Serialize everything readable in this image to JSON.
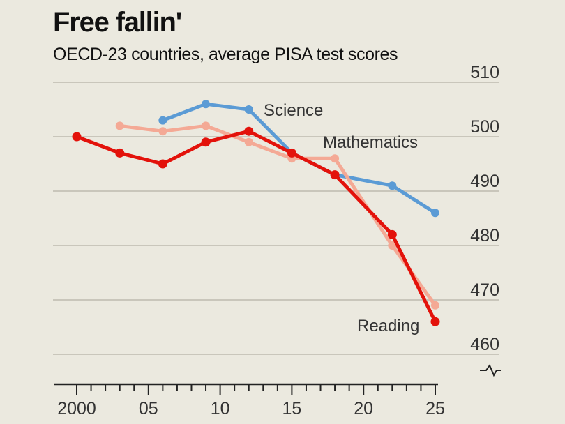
{
  "header": {
    "title": "Free fallin'",
    "subtitle": "OECD-23 countries, average PISA test scores"
  },
  "colors": {
    "science": "#5b9bd5",
    "mathematics": "#f4a995",
    "reading": "#e3120b",
    "grid": "#c9c6bb",
    "axis": "#222222"
  },
  "chart_data": {
    "type": "line",
    "title": "Free fallin'",
    "subtitle": "OECD-23 countries, average PISA test scores",
    "xlim": [
      2000,
      2025
    ],
    "ylim": [
      458,
      510
    ],
    "y_axis_side": "right",
    "y_ticks": [
      510,
      500,
      490,
      480,
      470,
      460
    ],
    "y_tick_labels": [
      "510",
      "500",
      "490",
      "480",
      "470",
      "460"
    ],
    "x_ticks": [
      2000,
      2005,
      2010,
      2015,
      2020,
      2025
    ],
    "x_tick_labels": [
      "2000",
      "05",
      "10",
      "15",
      "20",
      "25"
    ],
    "grid": true,
    "axis_break": true,
    "series": [
      {
        "name": "Science",
        "color": "#5b9bd5",
        "x": [
          2006,
          2009,
          2012,
          2015,
          2018,
          2022,
          2025
        ],
        "y": [
          503,
          506,
          505,
          497,
          493,
          491,
          486
        ]
      },
      {
        "name": "Mathematics",
        "color": "#f4a995",
        "x": [
          2003,
          2006,
          2009,
          2012,
          2015,
          2018,
          2022,
          2025
        ],
        "y": [
          502,
          501,
          502,
          499,
          496,
          496,
          480,
          469
        ]
      },
      {
        "name": "Reading",
        "color": "#e3120b",
        "x": [
          2000,
          2003,
          2006,
          2009,
          2012,
          2015,
          2018,
          2022,
          2025
        ],
        "y": [
          500,
          497,
          495,
          499,
          501,
          497,
          493,
          482,
          466
        ]
      }
    ]
  }
}
